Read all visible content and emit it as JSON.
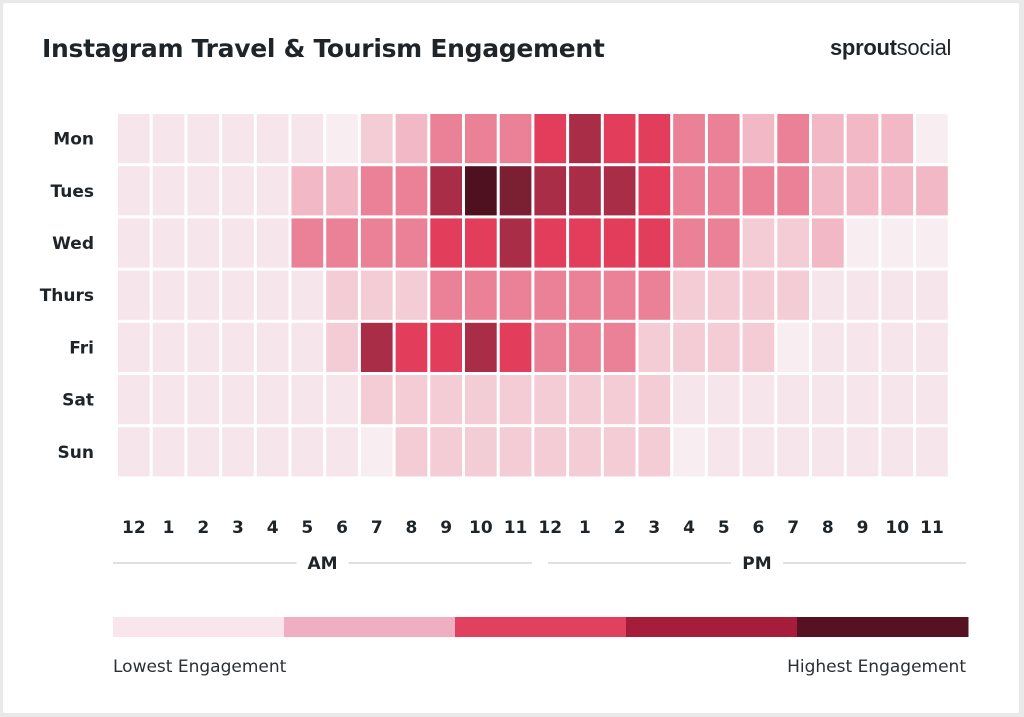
{
  "title": "Instagram Travel & Tourism Engagement",
  "brand": {
    "bold": "sprout",
    "light": "social"
  },
  "chart_data": {
    "type": "heatmap",
    "title": "Instagram Travel & Tourism Engagement",
    "rows": [
      "Mon",
      "Tues",
      "Wed",
      "Thurs",
      "Fri",
      "Sat",
      "Sun"
    ],
    "columns": [
      "12",
      "1",
      "2",
      "3",
      "4",
      "5",
      "6",
      "7",
      "8",
      "9",
      "10",
      "11",
      "12",
      "1",
      "2",
      "3",
      "4",
      "5",
      "6",
      "7",
      "8",
      "9",
      "10",
      "11"
    ],
    "periods": [
      {
        "label": "AM",
        "from_column": 0,
        "to_column": 11
      },
      {
        "label": "PM",
        "from_column": 12,
        "to_column": 23
      }
    ],
    "scale": {
      "min": 0,
      "max": 8
    },
    "palette": [
      "#f8eef1",
      "#f6e6eb",
      "#f4ccd6",
      "#f2b8c6",
      "#eb8196",
      "#e23d5b",
      "#aa2d47",
      "#7b1f32",
      "#4f111f"
    ],
    "values": [
      [
        1,
        1,
        1,
        1,
        1,
        1,
        0,
        2,
        3,
        4,
        4,
        4,
        5,
        6,
        5,
        5,
        4,
        4,
        3,
        4,
        3,
        3,
        3,
        0
      ],
      [
        1,
        1,
        1,
        1,
        1,
        3,
        3,
        4,
        4,
        6,
        8,
        7,
        6,
        6,
        6,
        5,
        4,
        4,
        4,
        4,
        3,
        3,
        3,
        3
      ],
      [
        1,
        1,
        1,
        1,
        1,
        4,
        4,
        4,
        4,
        5,
        5,
        6,
        5,
        5,
        5,
        5,
        4,
        4,
        2,
        2,
        3,
        0,
        0,
        0
      ],
      [
        1,
        1,
        1,
        1,
        1,
        1,
        2,
        2,
        2,
        4,
        4,
        4,
        4,
        4,
        4,
        4,
        2,
        2,
        2,
        2,
        1,
        1,
        1,
        1
      ],
      [
        1,
        1,
        1,
        1,
        1,
        1,
        2,
        6,
        5,
        5,
        6,
        5,
        4,
        4,
        4,
        2,
        2,
        2,
        2,
        0,
        1,
        1,
        1,
        1
      ],
      [
        1,
        1,
        1,
        1,
        1,
        1,
        1,
        2,
        2,
        2,
        2,
        2,
        2,
        2,
        2,
        2,
        1,
        1,
        1,
        1,
        1,
        1,
        1,
        1
      ],
      [
        1,
        1,
        1,
        1,
        1,
        1,
        1,
        0,
        2,
        2,
        2,
        2,
        2,
        2,
        2,
        2,
        0,
        1,
        1,
        1,
        1,
        1,
        1,
        1
      ]
    ],
    "legend": {
      "colors": [
        "#f8e6ec",
        "#f0aec3",
        "#e2405f",
        "#a51d3b",
        "#561222"
      ],
      "low_label": "Lowest Engagement",
      "high_label": "Highest Engagement"
    }
  }
}
